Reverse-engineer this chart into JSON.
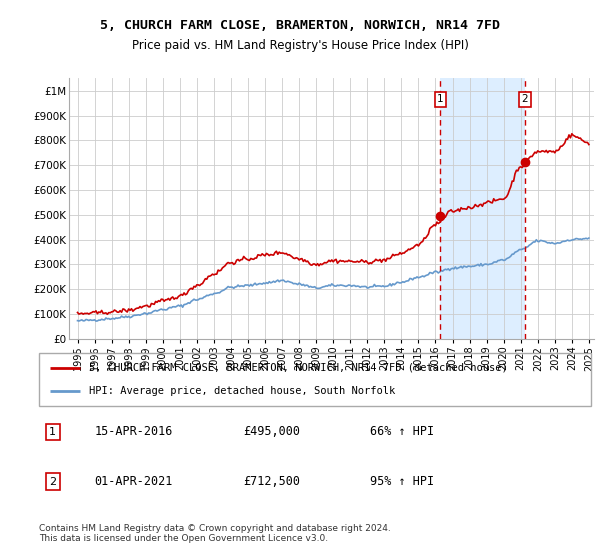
{
  "title": "5, CHURCH FARM CLOSE, BRAMERTON, NORWICH, NR14 7FD",
  "subtitle": "Price paid vs. HM Land Registry's House Price Index (HPI)",
  "legend_line1": "5, CHURCH FARM CLOSE, BRAMERTON, NORWICH, NR14 7FD (detached house)",
  "legend_line2": "HPI: Average price, detached house, South Norfolk",
  "annotation1_label": "1",
  "annotation1_date": "15-APR-2016",
  "annotation1_price": "£495,000",
  "annotation1_hpi": "66% ↑ HPI",
  "annotation2_label": "2",
  "annotation2_date": "01-APR-2021",
  "annotation2_price": "£712,500",
  "annotation2_hpi": "95% ↑ HPI",
  "footer": "Contains HM Land Registry data © Crown copyright and database right 2024.\nThis data is licensed under the Open Government Licence v3.0.",
  "red_color": "#cc0000",
  "blue_color": "#6699cc",
  "highlight_color": "#ddeeff",
  "vline_color": "#cc0000",
  "ylim": [
    0,
    1050000
  ],
  "yticks": [
    0,
    100000,
    200000,
    300000,
    400000,
    500000,
    600000,
    700000,
    800000,
    900000,
    1000000
  ],
  "ytick_labels": [
    "£0",
    "£100K",
    "£200K",
    "£300K",
    "£400K",
    "£500K",
    "£600K",
    "£700K",
    "£800K",
    "£900K",
    "£1M"
  ],
  "purchase1_x": 2016.29,
  "purchase1_y": 495000,
  "purchase2_x": 2021.25,
  "purchase2_y": 712500,
  "xmin": 1994.5,
  "xmax": 2025.3,
  "xtick_years": [
    1995,
    1996,
    1997,
    1998,
    1999,
    2000,
    2001,
    2002,
    2003,
    2004,
    2005,
    2006,
    2007,
    2008,
    2009,
    2010,
    2011,
    2012,
    2013,
    2014,
    2015,
    2016,
    2017,
    2018,
    2019,
    2020,
    2021,
    2022,
    2023,
    2024,
    2025
  ]
}
